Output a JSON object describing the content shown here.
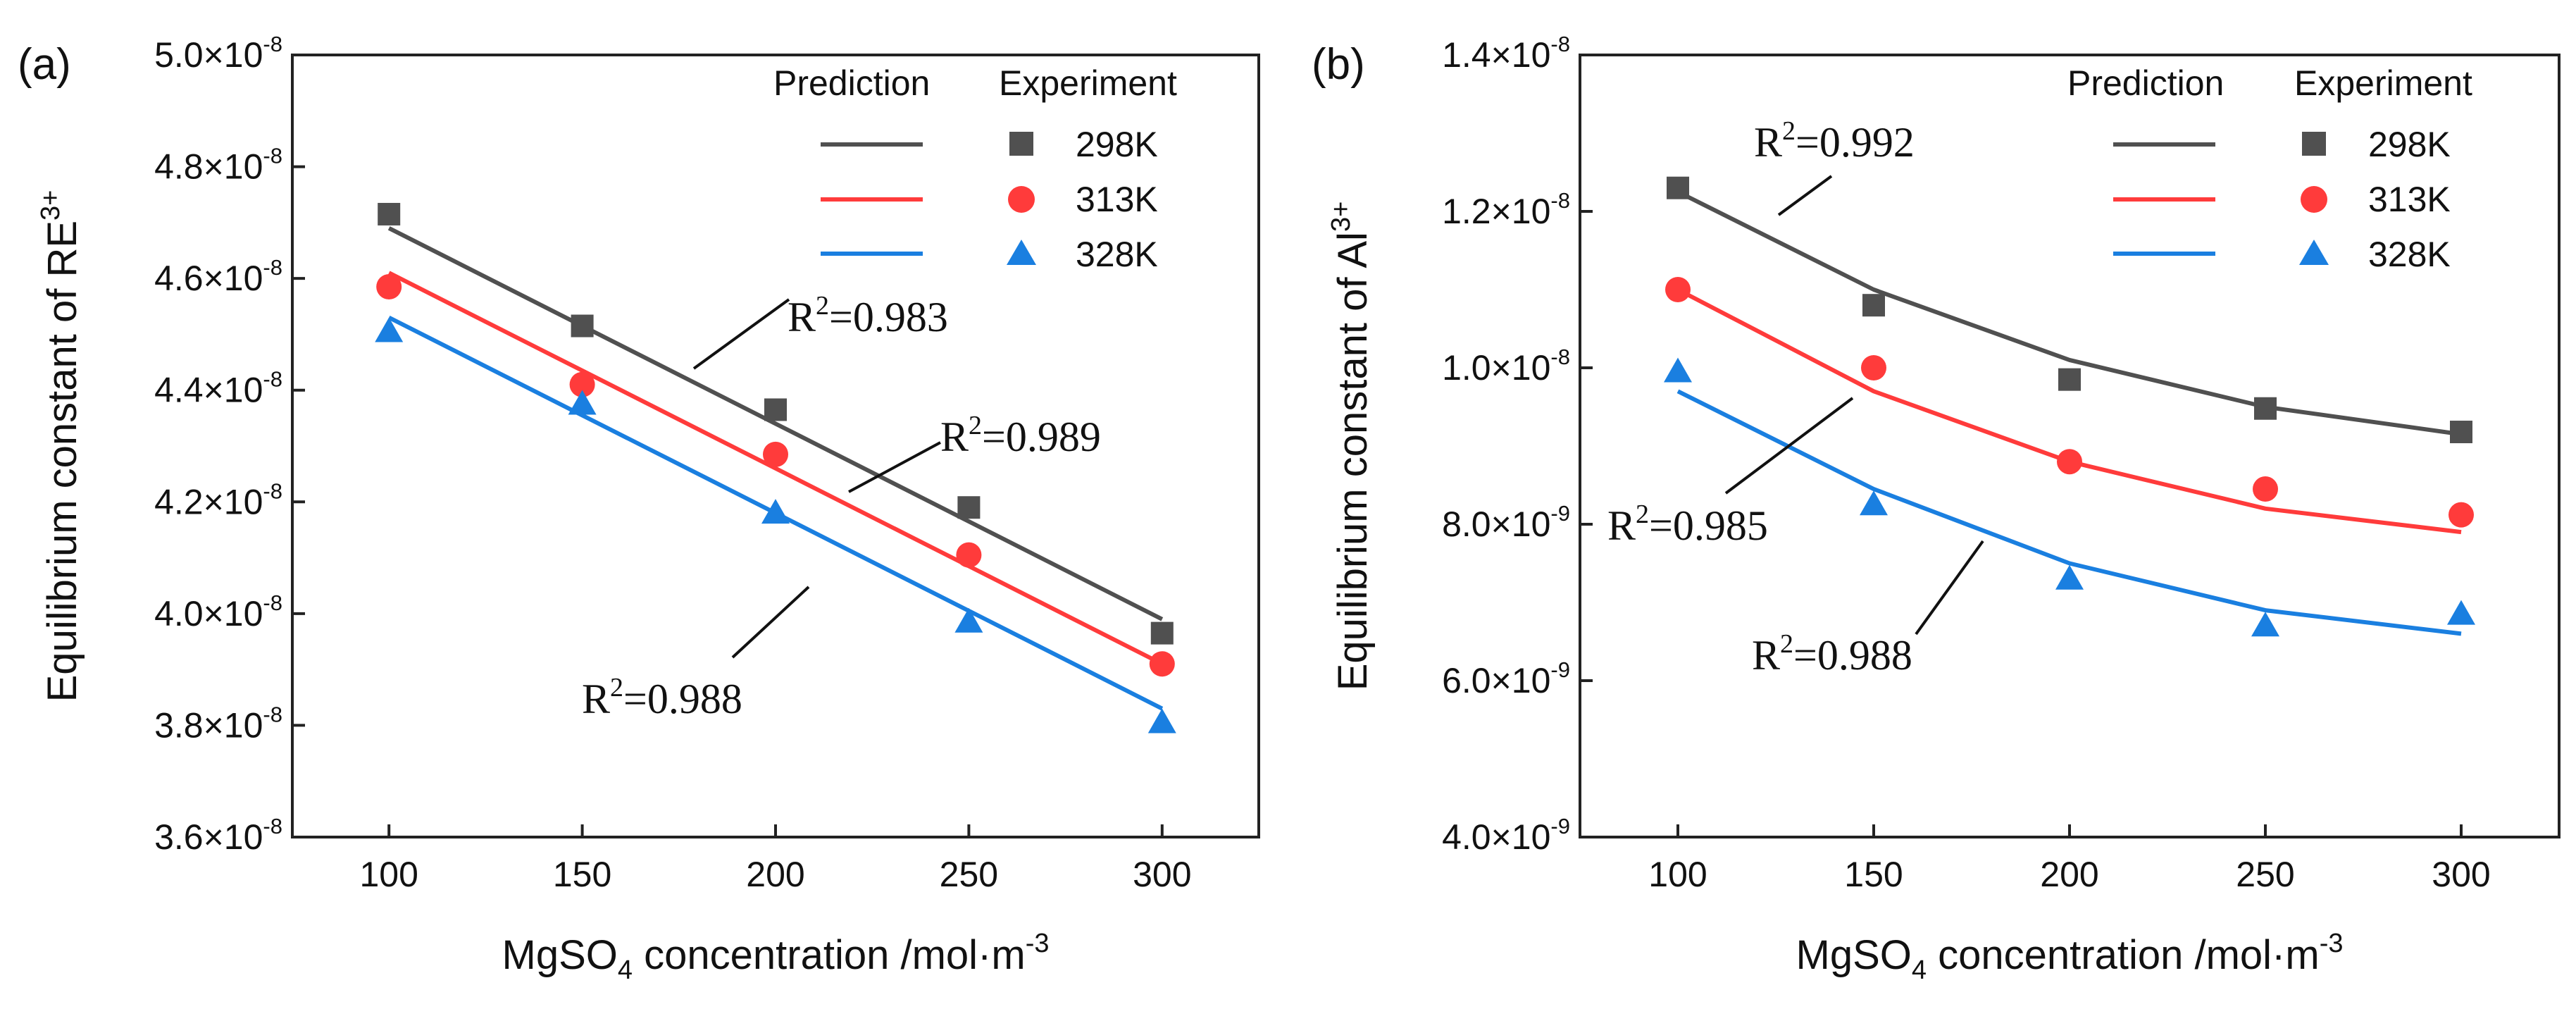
{
  "chart_data": [
    {
      "type": "line",
      "panel_label": "(a)",
      "xlabel": {
        "base": "MgSO",
        "sub": "4",
        "rest": " concentration /mol·m",
        "sup": "-3"
      },
      "ylabel": {
        "base": "Equilibrium constant of RE",
        "sup": "3+"
      },
      "x": [
        100,
        150,
        200,
        250,
        300
      ],
      "xlim": [
        75,
        325
      ],
      "xticks": [
        "100",
        "150",
        "200",
        "250",
        "300"
      ],
      "ylim": [
        3.6e-08,
        5e-08
      ],
      "yticks": [
        {
          "value": 3.6e-08,
          "mantissa": "3.6×10",
          "exp": "-8"
        },
        {
          "value": 3.8e-08,
          "mantissa": "3.8×10",
          "exp": "-8"
        },
        {
          "value": 4e-08,
          "mantissa": "4.0×10",
          "exp": "-8"
        },
        {
          "value": 4.2e-08,
          "mantissa": "4.2×10",
          "exp": "-8"
        },
        {
          "value": 4.4e-08,
          "mantissa": "4.4×10",
          "exp": "-8"
        },
        {
          "value": 4.6e-08,
          "mantissa": "4.6×10",
          "exp": "-8"
        },
        {
          "value": 4.8e-08,
          "mantissa": "4.8×10",
          "exp": "-8"
        },
        {
          "value": 5e-08,
          "mantissa": "5.0×10",
          "exp": "-8"
        }
      ],
      "legend": {
        "prediction_header": "Prediction",
        "experiment_header": "Experiment",
        "position": "top-right"
      },
      "series": [
        {
          "name": "298K",
          "color": "#505050",
          "marker": "square",
          "prediction": [
            4.69e-08,
            4.515e-08,
            4.34e-08,
            4.165e-08,
            3.99e-08
          ],
          "experiment": [
            4.715e-08,
            4.515e-08,
            4.365e-08,
            4.19e-08,
            3.965e-08
          ]
        },
        {
          "name": "313K",
          "color": "#ff3b3b",
          "marker": "circle",
          "prediction": [
            4.61e-08,
            4.435e-08,
            4.26e-08,
            4.085e-08,
            3.91e-08
          ],
          "experiment": [
            4.585e-08,
            4.41e-08,
            4.285e-08,
            4.105e-08,
            3.91e-08
          ]
        },
        {
          "name": "328K",
          "color": "#1a7fe0",
          "marker": "triangle",
          "prediction": [
            4.53e-08,
            4.355e-08,
            4.18e-08,
            4.005e-08,
            3.83e-08
          ],
          "experiment": [
            4.505e-08,
            4.375e-08,
            4.18e-08,
            3.985e-08,
            3.805e-08
          ]
        }
      ],
      "annotations": [
        {
          "base": "R",
          "sup": "2",
          "rest": "=0.983"
        },
        {
          "base": "R",
          "sup": "2",
          "rest": "=0.989"
        },
        {
          "base": "R",
          "sup": "2",
          "rest": "=0.988"
        }
      ]
    },
    {
      "type": "line",
      "panel_label": "(b)",
      "xlabel": {
        "base": "MgSO",
        "sub": "4",
        "rest": " concentration /mol·m",
        "sup": "-3"
      },
      "ylabel": {
        "base": "Equilibrium constant of Al",
        "sup": "3+"
      },
      "x": [
        100,
        150,
        200,
        250,
        300
      ],
      "xlim": [
        75,
        325
      ],
      "xticks": [
        "100",
        "150",
        "200",
        "250",
        "300"
      ],
      "ylim": [
        4e-09,
        1.4e-08
      ],
      "yticks": [
        {
          "value": 4e-09,
          "mantissa": "4.0×10",
          "exp": "-9"
        },
        {
          "value": 6e-09,
          "mantissa": "6.0×10",
          "exp": "-9"
        },
        {
          "value": 8e-09,
          "mantissa": "8.0×10",
          "exp": "-9"
        },
        {
          "value": 1e-08,
          "mantissa": "1.0×10",
          "exp": "-8"
        },
        {
          "value": 1.2e-08,
          "mantissa": "1.2×10",
          "exp": "-8"
        },
        {
          "value": 1.4e-08,
          "mantissa": "1.4×10",
          "exp": "-8"
        }
      ],
      "legend": {
        "prediction_header": "Prediction",
        "experiment_header": "Experiment",
        "position": "top-right"
      },
      "series": [
        {
          "name": "298K",
          "color": "#505050",
          "marker": "square",
          "prediction": [
            1.225e-08,
            1.1e-08,
            1.01e-08,
            9.5e-09,
            9.15e-09
          ],
          "experiment": [
            1.23e-08,
            1.08e-08,
            9.85e-09,
            9.48e-09,
            9.18e-09
          ]
        },
        {
          "name": "313K",
          "color": "#ff3b3b",
          "marker": "circle",
          "prediction": [
            1.1e-08,
            9.7e-09,
            8.8e-09,
            8.2e-09,
            7.9e-09
          ],
          "experiment": [
            1.1e-08,
            1e-08,
            8.8e-09,
            8.45e-09,
            8.12e-09
          ]
        },
        {
          "name": "328K",
          "color": "#1a7fe0",
          "marker": "triangle",
          "prediction": [
            9.7e-09,
            8.45e-09,
            7.5e-09,
            6.9e-09,
            6.6e-09
          ],
          "experiment": [
            9.95e-09,
            8.25e-09,
            7.3e-09,
            6.7e-09,
            6.85e-09
          ]
        }
      ],
      "annotations": [
        {
          "base": "R",
          "sup": "2",
          "rest": "=0.992"
        },
        {
          "base": "R",
          "sup": "2",
          "rest": "=0.985"
        },
        {
          "base": "R",
          "sup": "2",
          "rest": "=0.988"
        }
      ]
    }
  ]
}
